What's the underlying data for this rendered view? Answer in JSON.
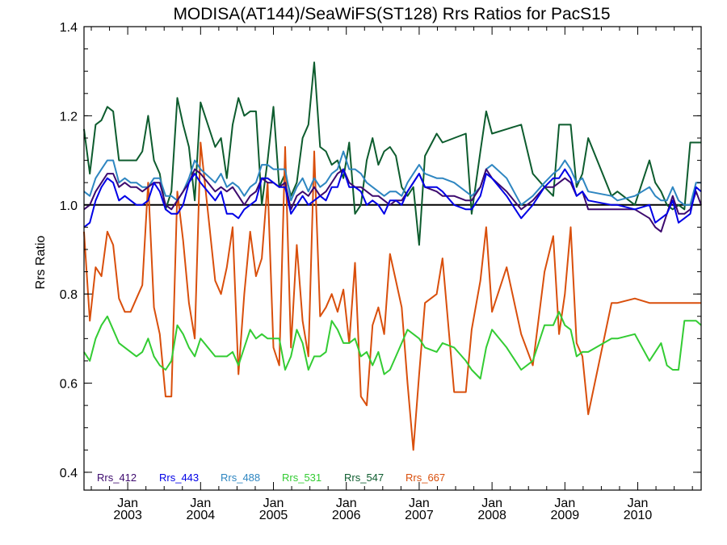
{
  "chart_data": {
    "type": "line",
    "title": "MODISA(AT144)/SeaWiFS(ST128)  Rrs Ratios for PacS15",
    "xlabel": "",
    "ylabel": "Rrs Ratio",
    "xlim": [
      2002.4,
      2010.87
    ],
    "ylim": [
      0.36,
      1.4
    ],
    "yticks": [
      0.4,
      0.6,
      0.8,
      1.0,
      1.2,
      1.4
    ],
    "ytick_labels": [
      "0.4",
      "0.6",
      "0.8",
      "1.0",
      "1.2",
      "1.4"
    ],
    "xticks": [
      2003.0,
      2004.0,
      2005.0,
      2006.0,
      2007.0,
      2008.0,
      2009.0,
      2010.0
    ],
    "xtick_month_labels": [
      "Jan",
      "Jan",
      "Jan",
      "Jan",
      "Jan",
      "Jan",
      "Jan",
      "Jan"
    ],
    "xtick_year_labels": [
      "2003",
      "2004",
      "2005",
      "2006",
      "2007",
      "2008",
      "2009",
      "2010"
    ],
    "reference_line": 1.0,
    "grid": false,
    "legend_position": "bottom-left",
    "x": [
      2002.4,
      2002.48,
      2002.56,
      2002.64,
      2002.72,
      2002.8,
      2002.88,
      2002.96,
      2003.04,
      2003.12,
      2003.2,
      2003.28,
      2003.36,
      2003.44,
      2003.52,
      2003.6,
      2003.68,
      2003.76,
      2003.84,
      2003.92,
      2004.0,
      2004.2,
      2004.28,
      2004.36,
      2004.44,
      2004.52,
      2004.6,
      2004.68,
      2004.76,
      2004.84,
      2004.92,
      2005.0,
      2005.08,
      2005.16,
      2005.24,
      2005.32,
      2005.4,
      2005.48,
      2005.56,
      2005.64,
      2005.72,
      2005.8,
      2005.88,
      2005.96,
      2006.04,
      2006.12,
      2006.2,
      2006.28,
      2006.36,
      2006.44,
      2006.52,
      2006.6,
      2006.68,
      2006.76,
      2006.84,
      2006.92,
      2007.0,
      2007.08,
      2007.24,
      2007.32,
      2007.48,
      2007.64,
      2007.72,
      2007.84,
      2007.92,
      2008.0,
      2008.2,
      2008.4,
      2008.56,
      2008.72,
      2008.84,
      2008.92,
      2009.0,
      2009.08,
      2009.16,
      2009.24,
      2009.32,
      2009.64,
      2009.72,
      2009.96,
      2010.16,
      2010.24,
      2010.32,
      2010.4,
      2010.48,
      2010.56,
      2010.64,
      2010.72,
      2010.8,
      2010.87
    ],
    "series": [
      {
        "name": "Rrs_412",
        "color": "#3d0a6e",
        "values": [
          0.99,
          1.0,
          1.03,
          1.05,
          1.07,
          1.07,
          1.04,
          1.05,
          1.04,
          1.04,
          1.03,
          1.04,
          1.05,
          1.05,
          1.0,
          0.99,
          1.01,
          1.03,
          1.05,
          1.08,
          1.07,
          1.03,
          1.04,
          1.03,
          1.04,
          1.02,
          1.0,
          1.02,
          1.03,
          1.06,
          1.05,
          1.05,
          1.04,
          1.05,
          0.99,
          1.02,
          1.03,
          1.02,
          1.04,
          1.02,
          1.03,
          1.05,
          1.07,
          1.08,
          1.05,
          1.04,
          1.04,
          1.03,
          1.02,
          1.02,
          1.01,
          1.0,
          1.01,
          1.01,
          1.03,
          1.05,
          1.07,
          1.04,
          1.03,
          1.02,
          1.02,
          1.01,
          1.01,
          1.04,
          1.08,
          1.06,
          1.03,
          0.99,
          1.01,
          1.04,
          1.04,
          1.05,
          1.06,
          1.05,
          1.02,
          1.03,
          0.99,
          0.99,
          0.99,
          0.99,
          0.97,
          0.95,
          0.94,
          0.98,
          1.02,
          0.98,
          0.98,
          0.99,
          1.03,
          1.0
        ]
      },
      {
        "name": "Rrs_443",
        "color": "#0000e6",
        "values": [
          0.95,
          0.96,
          1.01,
          1.04,
          1.06,
          1.05,
          1.01,
          1.02,
          1.01,
          1.0,
          1.0,
          1.01,
          1.05,
          1.03,
          0.99,
          0.98,
          0.98,
          1.0,
          1.05,
          1.07,
          1.05,
          1.01,
          1.03,
          0.98,
          0.98,
          0.97,
          0.99,
          1.0,
          1.01,
          1.06,
          1.06,
          1.05,
          1.04,
          1.04,
          0.98,
          1.0,
          1.02,
          1.0,
          1.01,
          1.02,
          1.01,
          1.04,
          1.04,
          1.08,
          1.04,
          1.04,
          1.03,
          1.0,
          1.01,
          1.0,
          0.98,
          1.01,
          1.01,
          1.0,
          1.03,
          1.05,
          1.07,
          1.04,
          1.04,
          1.03,
          1.0,
          0.99,
          0.99,
          1.02,
          1.07,
          1.06,
          1.02,
          0.97,
          1.0,
          1.04,
          1.06,
          1.06,
          1.08,
          1.06,
          1.02,
          1.03,
          1.01,
          1.0,
          1.0,
          0.99,
          1.0,
          0.96,
          0.97,
          0.98,
          1.01,
          0.96,
          0.97,
          0.98,
          1.04,
          1.03
        ]
      },
      {
        "name": "Rrs_488",
        "color": "#2e86c1",
        "values": [
          1.03,
          1.02,
          1.06,
          1.08,
          1.1,
          1.1,
          1.05,
          1.06,
          1.05,
          1.05,
          1.04,
          1.04,
          1.06,
          1.06,
          1.02,
          1.02,
          1.01,
          1.03,
          1.06,
          1.1,
          1.08,
          1.05,
          1.07,
          1.04,
          1.05,
          1.04,
          1.02,
          1.04,
          1.05,
          1.09,
          1.09,
          1.08,
          1.08,
          1.08,
          1.01,
          1.04,
          1.06,
          1.03,
          1.06,
          1.04,
          1.05,
          1.07,
          1.08,
          1.12,
          1.08,
          1.08,
          1.07,
          1.05,
          1.04,
          1.03,
          1.02,
          1.03,
          1.03,
          1.02,
          1.05,
          1.07,
          1.09,
          1.07,
          1.06,
          1.06,
          1.05,
          1.03,
          1.02,
          1.04,
          1.08,
          1.09,
          1.06,
          1.0,
          1.02,
          1.05,
          1.07,
          1.08,
          1.1,
          1.08,
          1.05,
          1.06,
          1.03,
          1.02,
          1.01,
          1.02,
          1.04,
          1.02,
          1.01,
          1.01,
          1.04,
          1.01,
          1.0,
          1.0,
          1.05,
          1.05
        ]
      },
      {
        "name": "Rrs_531",
        "color": "#33cc33",
        "values": [
          0.67,
          0.65,
          0.7,
          0.73,
          0.75,
          0.72,
          0.69,
          0.68,
          0.67,
          0.66,
          0.67,
          0.7,
          0.66,
          0.64,
          0.63,
          0.65,
          0.73,
          0.71,
          0.68,
          0.66,
          0.7,
          0.66,
          0.66,
          0.66,
          0.67,
          0.64,
          0.68,
          0.72,
          0.7,
          0.71,
          0.7,
          0.7,
          0.7,
          0.63,
          0.66,
          0.72,
          0.69,
          0.63,
          0.66,
          0.66,
          0.67,
          0.74,
          0.72,
          0.69,
          0.69,
          0.7,
          0.66,
          0.67,
          0.64,
          0.67,
          0.62,
          0.63,
          0.66,
          0.69,
          0.72,
          0.71,
          0.7,
          0.68,
          0.67,
          0.69,
          0.68,
          0.65,
          0.63,
          0.61,
          0.68,
          0.72,
          0.68,
          0.63,
          0.65,
          0.73,
          0.73,
          0.76,
          0.73,
          0.72,
          0.66,
          0.67,
          0.67,
          0.7,
          0.7,
          0.71,
          0.65,
          0.67,
          0.69,
          0.64,
          0.63,
          0.63,
          0.74,
          0.74,
          0.74,
          0.73
        ]
      },
      {
        "name": "Rrs_547",
        "color": "#0d5c2e",
        "values": [
          1.17,
          1.07,
          1.18,
          1.19,
          1.22,
          1.21,
          1.1,
          1.1,
          1.1,
          1.1,
          1.12,
          1.2,
          1.1,
          1.07,
          0.99,
          1.03,
          1.24,
          1.18,
          1.13,
          1.01,
          1.23,
          1.13,
          1.15,
          1.06,
          1.18,
          1.24,
          1.2,
          1.21,
          1.21,
          1.0,
          1.1,
          1.22,
          1.04,
          1.07,
          1.02,
          1.05,
          1.15,
          1.18,
          1.32,
          1.13,
          1.12,
          1.09,
          1.1,
          1.06,
          1.14,
          0.98,
          1.0,
          1.1,
          1.15,
          1.09,
          1.12,
          1.13,
          1.11,
          1.04,
          1.02,
          1.04,
          0.91,
          1.11,
          1.16,
          1.14,
          1.15,
          1.16,
          0.98,
          1.12,
          1.21,
          1.16,
          1.17,
          1.18,
          1.07,
          1.04,
          1.02,
          1.18,
          1.18,
          1.18,
          1.04,
          1.07,
          1.15,
          1.02,
          1.03,
          1.0,
          1.1,
          1.05,
          1.03,
          1.0,
          0.99,
          1.0,
          0.99,
          1.14,
          1.14,
          1.14
        ]
      },
      {
        "name": "Rrs_667",
        "color": "#d94f0c",
        "values": [
          0.94,
          0.74,
          0.86,
          0.84,
          0.94,
          0.91,
          0.79,
          0.76,
          0.76,
          0.79,
          0.82,
          1.05,
          0.77,
          0.71,
          0.57,
          0.57,
          1.03,
          0.92,
          0.78,
          0.7,
          1.14,
          0.83,
          0.8,
          0.86,
          0.95,
          0.62,
          0.8,
          0.94,
          0.84,
          0.88,
          1.05,
          0.68,
          0.64,
          1.13,
          0.68,
          0.91,
          0.74,
          0.66,
          1.12,
          0.75,
          0.77,
          0.8,
          0.76,
          0.81,
          0.69,
          0.87,
          0.57,
          0.55,
          0.73,
          0.77,
          0.71,
          0.89,
          0.83,
          0.77,
          0.6,
          0.45,
          0.62,
          0.78,
          0.8,
          0.88,
          0.58,
          0.58,
          0.72,
          0.83,
          0.95,
          0.76,
          0.86,
          0.71,
          0.64,
          0.85,
          0.93,
          0.71,
          0.8,
          0.95,
          0.69,
          0.66,
          0.53,
          0.78,
          0.78,
          0.79,
          0.78,
          0.78,
          0.78,
          0.78,
          0.78,
          0.78,
          0.78,
          0.78,
          0.78,
          0.78
        ]
      }
    ]
  }
}
